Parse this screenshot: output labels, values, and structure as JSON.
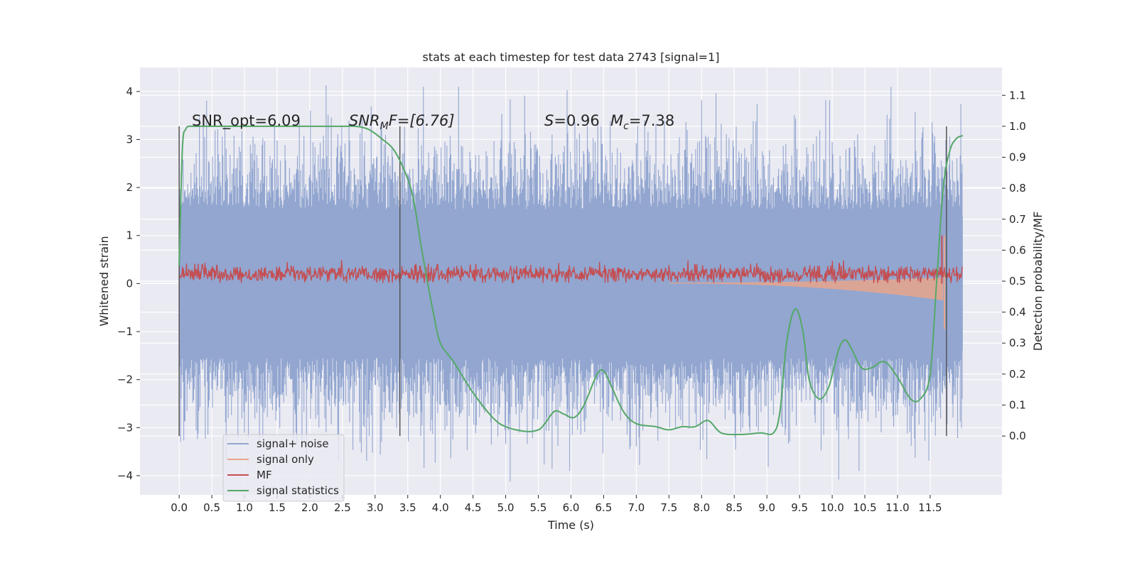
{
  "chart_data": {
    "type": "line",
    "title": "stats at each timestep for test data 2743 [signal=1]",
    "xlabel": "Time (s)",
    "ylabel": "Whitened strain",
    "ylabel_right": "Detection probability/MF",
    "xlim": [
      -0.6,
      12.6
    ],
    "ylim_left": [
      -4.4,
      4.5
    ],
    "ylim_right": [
      -0.19,
      1.19
    ],
    "x_ticks": [
      "0.0",
      "0.5",
      "1.0",
      "1.5",
      "2.0",
      "2.5",
      "3.0",
      "3.5",
      "4.0",
      "4.5",
      "5.0",
      "5.5",
      "6.0",
      "6.5",
      "7.0",
      "7.5",
      "8.0",
      "8.5",
      "9.0",
      "9.5",
      "10.0",
      "10.5",
      "11.0",
      "11.5"
    ],
    "y_ticks_left": [
      "−4",
      "−3",
      "−2",
      "−1",
      "0",
      "1",
      "2",
      "3",
      "4"
    ],
    "y_ticks_right": [
      "0.0",
      "0.1",
      "0.2",
      "0.3",
      "0.4",
      "0.5",
      "0.6",
      "0.7",
      "0.8",
      "0.9",
      "1.0",
      "1.1"
    ],
    "grid": true,
    "legend_position": "lower-left",
    "annotations": {
      "snr_opt": "SNR_opt=6.09",
      "snr_mf_main": "SNR",
      "snr_mf_sub": "M",
      "snr_mf_rest": "F=[6.76]",
      "s_italic": "S",
      "s_rest": "=0.96",
      "mc_main": "M",
      "mc_sub": "c",
      "mc_rest": "=7.38"
    },
    "vertical_lines_x": [
      0.0,
      3.38,
      11.75
    ],
    "series": [
      {
        "name": "signal+ noise",
        "color": "#92a6d0",
        "description_range": [
          -3.9,
          4.1
        ],
        "x_range": [
          0.0,
          12.0
        ]
      },
      {
        "name": "signal only",
        "color": "#e8a48c",
        "x_range": [
          0.0,
          12.0
        ]
      },
      {
        "name": "MF",
        "color": "#c44e52",
        "x_range": [
          0.0,
          12.0
        ]
      },
      {
        "name": "signal statistics",
        "color": "#55a868",
        "axis": "right",
        "x": [
          0.0,
          0.05,
          0.1,
          0.15,
          0.2,
          0.5,
          1.0,
          1.5,
          2.0,
          2.5,
          2.7,
          2.9,
          3.1,
          3.3,
          3.5,
          3.6,
          3.7,
          3.8,
          3.9,
          4.0,
          4.2,
          4.5,
          4.8,
          5.0,
          5.3,
          5.5,
          5.6,
          5.75,
          5.9,
          6.05,
          6.2,
          6.4,
          6.5,
          6.6,
          6.8,
          7.0,
          7.3,
          7.5,
          7.7,
          7.9,
          8.1,
          8.3,
          8.6,
          8.9,
          9.1,
          9.2,
          9.3,
          9.43,
          9.55,
          9.65,
          9.8,
          9.95,
          10.1,
          10.2,
          10.3,
          10.45,
          10.6,
          10.8,
          11.0,
          11.2,
          11.35,
          11.5,
          11.6,
          11.7,
          11.8,
          11.9,
          12.0
        ],
        "values": [
          0.55,
          0.93,
          0.99,
          1.0,
          1.0,
          1.0,
          1.0,
          1.0,
          1.0,
          1.0,
          1.0,
          0.99,
          0.96,
          0.92,
          0.83,
          0.75,
          0.62,
          0.5,
          0.39,
          0.3,
          0.24,
          0.14,
          0.06,
          0.03,
          0.015,
          0.02,
          0.04,
          0.08,
          0.07,
          0.06,
          0.1,
          0.2,
          0.21,
          0.17,
          0.08,
          0.04,
          0.03,
          0.02,
          0.03,
          0.03,
          0.05,
          0.01,
          0.005,
          0.01,
          0.01,
          0.08,
          0.3,
          0.41,
          0.34,
          0.18,
          0.12,
          0.16,
          0.28,
          0.31,
          0.28,
          0.22,
          0.22,
          0.24,
          0.19,
          0.12,
          0.12,
          0.2,
          0.5,
          0.8,
          0.92,
          0.96,
          0.97
        ]
      }
    ]
  }
}
